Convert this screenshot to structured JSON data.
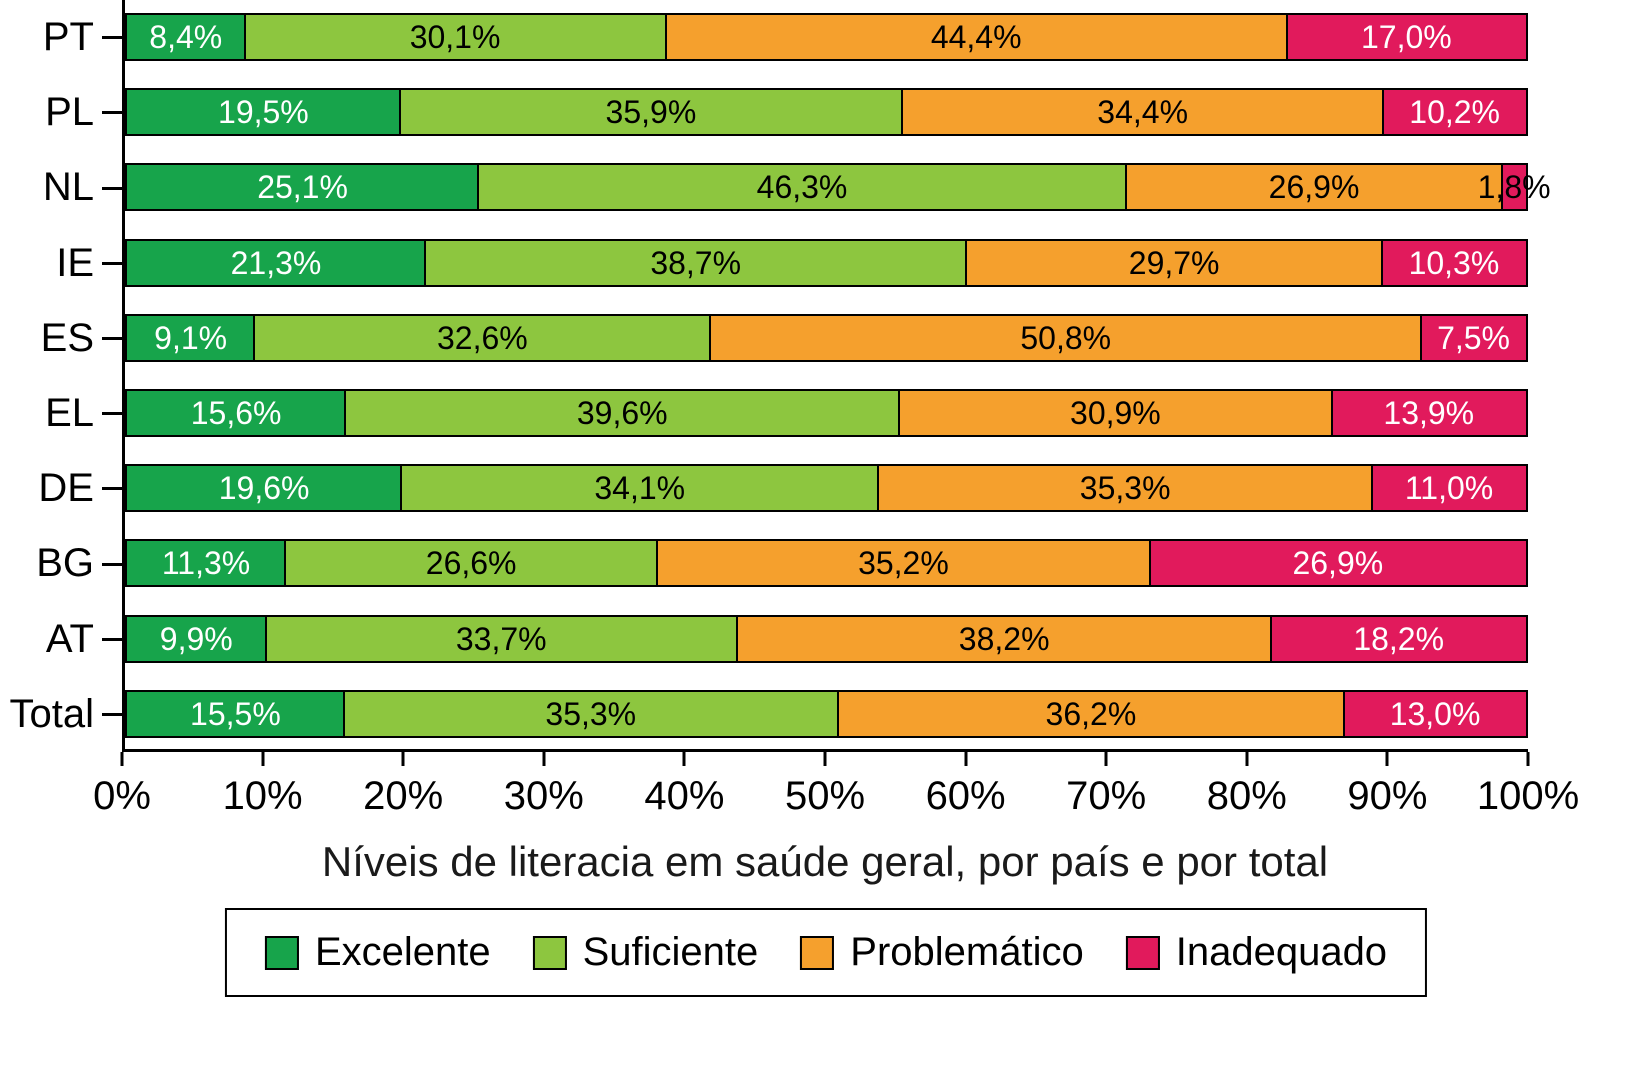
{
  "chart_data": {
    "type": "bar",
    "orientation": "horizontal",
    "stacked": true,
    "title": "Níveis de literacia em saúde geral, por país e por total",
    "categories": [
      "PT",
      "PL",
      "NL",
      "IE",
      "ES",
      "EL",
      "DE",
      "BG",
      "AT",
      "Total"
    ],
    "series": [
      {
        "name": "Excelente",
        "color": "#17a44b",
        "label_color": "#ffffff",
        "values": [
          8.4,
          19.5,
          25.1,
          21.3,
          9.1,
          15.6,
          19.6,
          11.3,
          9.9,
          15.5
        ],
        "labels": [
          "8,4%",
          "19,5%",
          "25,1%",
          "21,3%",
          "9,1%",
          "15,6%",
          "19,6%",
          "11,3%",
          "9,9%",
          "15,5%"
        ]
      },
      {
        "name": "Suficiente",
        "color": "#8dc63f",
        "label_color": "#000000",
        "values": [
          30.1,
          35.9,
          46.3,
          38.7,
          32.6,
          39.6,
          34.1,
          26.6,
          33.7,
          35.3
        ],
        "labels": [
          "30,1%",
          "35,9%",
          "46,3%",
          "38,7%",
          "32,6%",
          "39,6%",
          "34,1%",
          "26,6%",
          "33,7%",
          "35,3%"
        ]
      },
      {
        "name": "Problemático",
        "color": "#f5a02d",
        "label_color": "#000000",
        "values": [
          44.4,
          34.4,
          26.9,
          29.7,
          50.8,
          30.9,
          35.3,
          35.2,
          38.2,
          36.2
        ],
        "labels": [
          "44,4%",
          "34,4%",
          "26,9%",
          "29,7%",
          "50,8%",
          "30,9%",
          "35,3%",
          "35,2%",
          "38,2%",
          "36,2%"
        ]
      },
      {
        "name": "Inadequado",
        "color": "#e11a5c",
        "label_color": "#ffffff",
        "values": [
          17.0,
          10.2,
          1.8,
          10.3,
          7.5,
          13.9,
          11.0,
          26.9,
          18.2,
          13.0
        ],
        "labels": [
          "17,0%",
          "10,2%",
          "1,8%",
          "10,3%",
          "7,5%",
          "13,9%",
          "11,0%",
          "26,9%",
          "18,2%",
          "13,0%"
        ]
      }
    ],
    "x_ticks": [
      "0%",
      "10%",
      "20%",
      "30%",
      "40%",
      "50%",
      "60%",
      "70%",
      "80%",
      "90%",
      "100%"
    ],
    "xlim": [
      0,
      100
    ],
    "legend": [
      "Excelente",
      "Suficiente",
      "Problemático",
      "Inadequado"
    ],
    "legend_position": "bottom",
    "grid": false
  }
}
